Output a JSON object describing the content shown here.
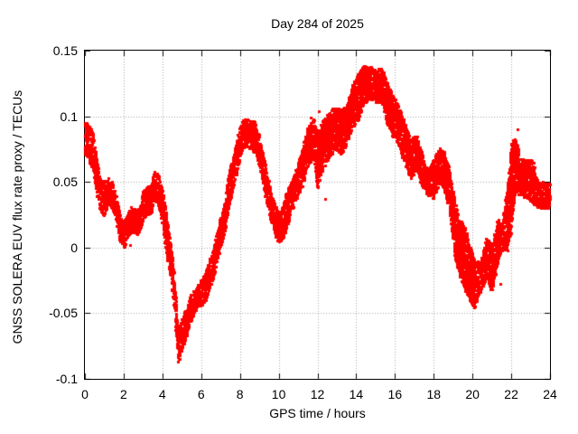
{
  "header": {
    "title": "Day 284 of 2025"
  },
  "colors": {
    "point": "#ff0000",
    "axis": "#000000",
    "grid": "#a8a8a8",
    "background": "#ffffff",
    "text": "#000000"
  },
  "chart_data": {
    "type": "scatter",
    "title": "Day 284 of 2025",
    "xlabel": "GPS time / hours",
    "ylabel": "GNSS SOLERA EUV flux rate proxy / TECUs",
    "xlim": [
      0,
      24
    ],
    "ylim": [
      -0.1,
      0.15
    ],
    "xticks": [
      0,
      2,
      4,
      6,
      8,
      10,
      12,
      14,
      16,
      18,
      20,
      22,
      24
    ],
    "xtick_labels": [
      "0",
      "2",
      "4",
      "6",
      "8",
      "10",
      "12",
      "14",
      "16",
      "18",
      "20",
      "22",
      "24"
    ],
    "yticks": [
      -0.1,
      -0.05,
      0,
      0.05,
      0.1,
      0.15
    ],
    "ytick_labels": [
      "-0.1",
      "-0.05",
      "0",
      "0.05",
      "0.1",
      "0.15"
    ],
    "grid": true,
    "grid_style": "dotted",
    "legend": "none",
    "marker": "filled-square",
    "marker_px": 3,
    "series": [
      {
        "name": "EUV flux rate proxy",
        "color": "#ff0000",
        "band_t_lo_hi": [
          [
            0.0,
            0.071,
            0.097
          ],
          [
            0.2,
            0.066,
            0.094
          ],
          [
            0.4,
            0.06,
            0.088
          ],
          [
            0.6,
            0.042,
            0.068
          ],
          [
            0.8,
            0.026,
            0.051
          ],
          [
            1.0,
            0.024,
            0.051
          ],
          [
            1.2,
            0.032,
            0.053
          ],
          [
            1.4,
            0.03,
            0.05
          ],
          [
            1.6,
            0.02,
            0.042
          ],
          [
            1.8,
            0.004,
            0.027
          ],
          [
            2.0,
            -0.001,
            0.019
          ],
          [
            2.2,
            0.008,
            0.027
          ],
          [
            2.4,
            0.012,
            0.031
          ],
          [
            2.6,
            0.01,
            0.029
          ],
          [
            2.8,
            0.01,
            0.03
          ],
          [
            3.0,
            0.021,
            0.044
          ],
          [
            3.2,
            0.025,
            0.046
          ],
          [
            3.4,
            0.026,
            0.048
          ],
          [
            3.6,
            0.037,
            0.059
          ],
          [
            3.8,
            0.031,
            0.057
          ],
          [
            4.0,
            0.016,
            0.044
          ],
          [
            4.2,
            -0.005,
            0.025
          ],
          [
            4.4,
            -0.023,
            0.005
          ],
          [
            4.6,
            -0.048,
            -0.018
          ],
          [
            4.8,
            -0.089,
            -0.063
          ],
          [
            5.0,
            -0.078,
            -0.054
          ],
          [
            5.2,
            -0.07,
            -0.046
          ],
          [
            5.4,
            -0.058,
            -0.036
          ],
          [
            5.6,
            -0.052,
            -0.033
          ],
          [
            5.8,
            -0.047,
            -0.029
          ],
          [
            6.0,
            -0.044,
            -0.024
          ],
          [
            6.2,
            -0.041,
            -0.019
          ],
          [
            6.4,
            -0.033,
            -0.01
          ],
          [
            6.6,
            -0.025,
            -0.002
          ],
          [
            6.8,
            -0.013,
            0.012
          ],
          [
            7.0,
            0.0,
            0.024
          ],
          [
            7.2,
            0.01,
            0.034
          ],
          [
            7.4,
            0.029,
            0.056
          ],
          [
            7.6,
            0.042,
            0.068
          ],
          [
            7.8,
            0.055,
            0.08
          ],
          [
            8.0,
            0.068,
            0.092
          ],
          [
            8.2,
            0.077,
            0.098
          ],
          [
            8.4,
            0.076,
            0.098
          ],
          [
            8.6,
            0.075,
            0.097
          ],
          [
            8.8,
            0.072,
            0.096
          ],
          [
            9.0,
            0.06,
            0.085
          ],
          [
            9.3,
            0.039,
            0.065
          ],
          [
            9.6,
            0.019,
            0.042
          ],
          [
            9.9,
            0.005,
            0.03
          ],
          [
            10.1,
            0.004,
            0.026
          ],
          [
            10.3,
            0.009,
            0.039
          ],
          [
            10.6,
            0.025,
            0.049
          ],
          [
            10.9,
            0.037,
            0.06
          ],
          [
            11.2,
            0.046,
            0.075
          ],
          [
            11.5,
            0.062,
            0.092
          ],
          [
            11.8,
            0.069,
            0.099
          ],
          [
            12.0,
            0.042,
            0.087
          ],
          [
            12.3,
            0.06,
            0.098
          ],
          [
            12.6,
            0.068,
            0.103
          ],
          [
            12.9,
            0.075,
            0.108
          ],
          [
            13.2,
            0.071,
            0.106
          ],
          [
            13.5,
            0.078,
            0.108
          ],
          [
            13.8,
            0.091,
            0.124
          ],
          [
            14.1,
            0.097,
            0.133
          ],
          [
            14.4,
            0.109,
            0.139
          ],
          [
            14.7,
            0.114,
            0.139
          ],
          [
            15.0,
            0.11,
            0.135
          ],
          [
            15.3,
            0.11,
            0.137
          ],
          [
            15.6,
            0.094,
            0.126
          ],
          [
            15.9,
            0.084,
            0.116
          ],
          [
            16.2,
            0.077,
            0.109
          ],
          [
            16.5,
            0.063,
            0.095
          ],
          [
            16.8,
            0.052,
            0.083
          ],
          [
            17.1,
            0.058,
            0.086
          ],
          [
            17.4,
            0.046,
            0.072
          ],
          [
            17.7,
            0.04,
            0.058
          ],
          [
            18.0,
            0.037,
            0.069
          ],
          [
            18.3,
            0.049,
            0.076
          ],
          [
            18.5,
            0.046,
            0.075
          ],
          [
            18.8,
            0.028,
            0.06
          ],
          [
            19.1,
            -0.01,
            0.035
          ],
          [
            19.3,
            -0.02,
            0.022
          ],
          [
            19.6,
            -0.032,
            0.016
          ],
          [
            19.9,
            -0.042,
            0.0
          ],
          [
            20.1,
            -0.046,
            -0.009
          ],
          [
            20.4,
            -0.036,
            -0.011
          ],
          [
            20.7,
            -0.023,
            0.007
          ],
          [
            21.0,
            -0.034,
            0.002
          ],
          [
            21.3,
            -0.011,
            0.023
          ],
          [
            21.5,
            -0.002,
            0.018
          ],
          [
            21.8,
            -0.002,
            0.047
          ],
          [
            22.0,
            0.014,
            0.081
          ],
          [
            22.2,
            0.042,
            0.083
          ],
          [
            22.5,
            0.04,
            0.068
          ],
          [
            22.8,
            0.037,
            0.067
          ],
          [
            23.1,
            0.034,
            0.067
          ],
          [
            23.4,
            0.03,
            0.05
          ],
          [
            23.7,
            0.03,
            0.05
          ],
          [
            24.0,
            0.029,
            0.049
          ]
        ],
        "outliers": [
          [
            2.35,
            0.002
          ],
          [
            11.65,
            0.099
          ],
          [
            12.05,
            0.104
          ],
          [
            12.4,
            0.037
          ],
          [
            21.45,
            -0.028
          ],
          [
            22.3,
            0.09
          ]
        ]
      }
    ]
  }
}
